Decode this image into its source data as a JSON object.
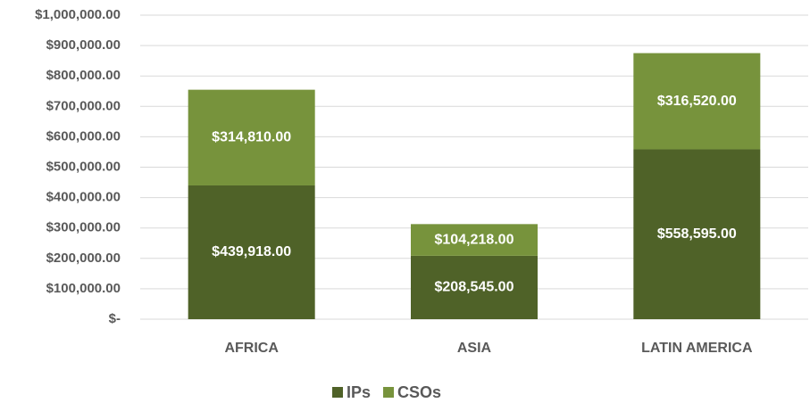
{
  "chart_data": {
    "type": "stacked_bar",
    "categories": [
      "AFRICA",
      "ASIA",
      "LATIN AMERICA"
    ],
    "series": [
      {
        "name": "IPs",
        "color": "#4f6228",
        "values": [
          439918,
          208545,
          558595
        ],
        "value_labels": [
          "$439,918.00",
          "$208,545.00",
          "$558,595.00"
        ]
      },
      {
        "name": "CSOs",
        "color": "#77933c",
        "values": [
          314810,
          104218,
          316520
        ],
        "value_labels": [
          "$314,810.00",
          "$104,218.00",
          "$316,520.00"
        ]
      }
    ],
    "ylim": [
      0,
      1000000
    ],
    "yticks": [
      {
        "value": 0,
        "label": "$-"
      },
      {
        "value": 100000,
        "label": "$100,000.00"
      },
      {
        "value": 200000,
        "label": "$200,000.00"
      },
      {
        "value": 300000,
        "label": "$300,000.00"
      },
      {
        "value": 400000,
        "label": "$400,000.00"
      },
      {
        "value": 500000,
        "label": "$500,000.00"
      },
      {
        "value": 600000,
        "label": "$600,000.00"
      },
      {
        "value": 700000,
        "label": "$700,000.00"
      },
      {
        "value": 800000,
        "label": "$800,000.00"
      },
      {
        "value": 900000,
        "label": "$900,000.00"
      },
      {
        "value": 1000000,
        "label": "$1,000,000.00"
      }
    ],
    "grid": true,
    "legend": "bottom"
  }
}
